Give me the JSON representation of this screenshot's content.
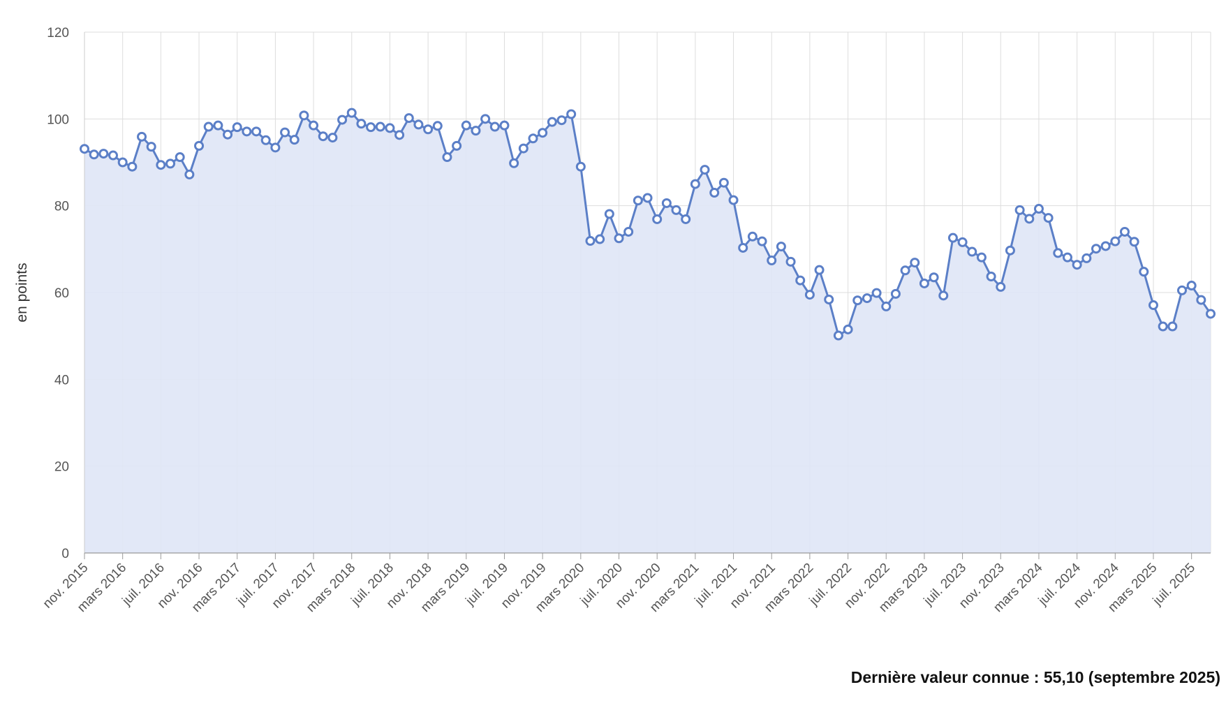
{
  "chart_data": {
    "type": "area",
    "ylabel": "en points",
    "ylim": [
      0,
      120
    ],
    "yticks": [
      "0",
      "20",
      "40",
      "60",
      "80",
      "100",
      "120"
    ],
    "grid": true,
    "colors": {
      "line": "#5b7fc7",
      "fill": "#dfe5f6",
      "grid": "#dddddd",
      "axis": "#999999"
    },
    "x_start": "nov. 2015",
    "x_end": "sept. 2025",
    "xtick_labels": [
      "nov. 2015",
      "mars 2016",
      "juil. 2016",
      "nov. 2016",
      "mars 2017",
      "juil. 2017",
      "nov. 2017",
      "mars 2018",
      "juil. 2018",
      "nov. 2018",
      "mars 2019",
      "juil. 2019",
      "nov. 2019",
      "mars 2020",
      "juil. 2020",
      "nov. 2020",
      "mars 2021",
      "juil. 2021",
      "nov. 2021",
      "mars 2022",
      "juil. 2022",
      "nov. 2022",
      "mars 2023",
      "juil. 2023",
      "nov. 2023",
      "mars 2024",
      "juil. 2024",
      "nov. 2024",
      "mars 2025",
      "juil. 2025"
    ],
    "series": [
      {
        "values": [
          93.1,
          91.8,
          92.0,
          91.6,
          90.0,
          89.0,
          95.9,
          93.6,
          89.4,
          89.7,
          91.2,
          87.2,
          93.8,
          98.2,
          98.5,
          96.4,
          98.1,
          97.1,
          97.1,
          95.1,
          93.4,
          96.9,
          95.2,
          100.8,
          98.5,
          96.0,
          95.7,
          99.8,
          101.4,
          98.9,
          98.1,
          98.2,
          97.9,
          96.3,
          100.2,
          98.7,
          97.6,
          98.4,
          91.2,
          93.8,
          98.5,
          97.3,
          100.0,
          98.2,
          98.5,
          89.8,
          93.2,
          95.5,
          96.8,
          99.3,
          99.7,
          101.1,
          89.0,
          71.9,
          72.3,
          78.1,
          72.5,
          74.0,
          81.2,
          81.8,
          76.9,
          80.6,
          79.0,
          76.9,
          85.0,
          88.3,
          83.0,
          85.3,
          81.3,
          70.3,
          72.9,
          71.8,
          67.4,
          70.6,
          67.1,
          62.8,
          59.5,
          65.2,
          58.4,
          50.1,
          51.5,
          58.2,
          58.7,
          59.9,
          56.8,
          59.7,
          65.1,
          66.9,
          62.1,
          63.5,
          59.3,
          72.6,
          71.6,
          69.4,
          68.1,
          63.7,
          61.3,
          69.7,
          79.0,
          77.0,
          79.3,
          77.2,
          69.1,
          68.1,
          66.4,
          67.9,
          70.1,
          70.7,
          71.8,
          74.0,
          71.7,
          64.8,
          57.1,
          52.2,
          52.2,
          60.5,
          61.6,
          58.3,
          55.1
        ]
      }
    ]
  },
  "footer": {
    "last_value_note": "Dernière valeur connue : 55,10 (septembre 2025)"
  }
}
